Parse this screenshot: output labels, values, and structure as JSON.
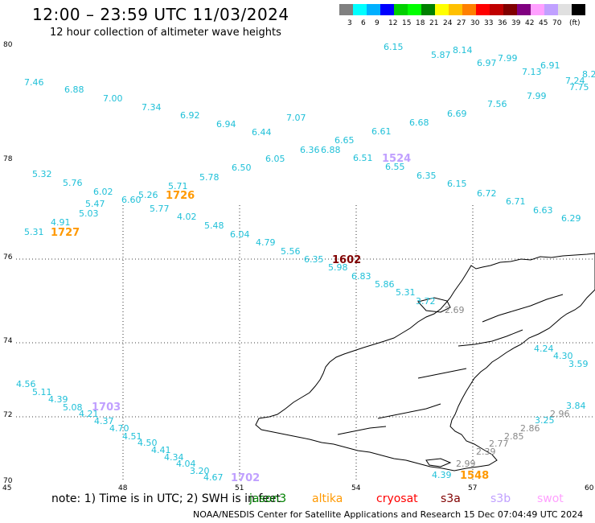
{
  "header": {
    "title": "12:00 – 23:59 UTC 11/03/2024",
    "subtitle": "12 hour collection of altimeter wave heights"
  },
  "legend": {
    "colors": [
      "#808080",
      "#00ffff",
      "#00b0ff",
      "#0000ff",
      "#00d000",
      "#00ff00",
      "#008000",
      "#ffff00",
      "#ffc000",
      "#ff8000",
      "#ff0000",
      "#c00000",
      "#800000",
      "#800080",
      "#ffa0ff",
      "#c0a0ff",
      "#e0e0e0",
      "#000000"
    ],
    "labels": [
      "3",
      "6",
      "9",
      "12",
      "15",
      "18",
      "21",
      "24",
      "27",
      "30",
      "33",
      "36",
      "39",
      "42",
      "45",
      "70"
    ],
    "unit": "(ft)"
  },
  "axes": {
    "lat_labels": [
      "80",
      "78",
      "76",
      "74",
      "72",
      "70"
    ],
    "lon_labels": [
      "45",
      "48",
      "51",
      "54",
      "57",
      "60"
    ]
  },
  "observations": [
    {
      "t": "6.15",
      "c": "#20c0d8"
    },
    {
      "t": "5.87",
      "c": "#20c0d8"
    },
    {
      "t": "8.14",
      "c": "#20c0d8"
    },
    {
      "t": "6.97",
      "c": "#20c0d8"
    },
    {
      "t": "7.99",
      "c": "#20c0d8"
    },
    {
      "t": "7.13",
      "c": "#20c0d8"
    },
    {
      "t": "6.91",
      "c": "#20c0d8"
    },
    {
      "t": "8.2",
      "c": "#20c0d8"
    },
    {
      "t": "7.24",
      "c": "#20c0d8"
    },
    {
      "t": "7.75",
      "c": "#20c0d8"
    },
    {
      "t": "7.46",
      "c": "#20c0d8"
    },
    {
      "t": "6.88",
      "c": "#20c0d8"
    },
    {
      "t": "7.00",
      "c": "#20c0d8"
    },
    {
      "t": "7.34",
      "c": "#20c0d8"
    },
    {
      "t": "6.92",
      "c": "#20c0d8"
    },
    {
      "t": "6.94",
      "c": "#20c0d8"
    },
    {
      "t": "6.44",
      "c": "#20c0d8"
    },
    {
      "t": "7.07",
      "c": "#20c0d8"
    },
    {
      "t": "6.36",
      "c": "#20c0d8"
    },
    {
      "t": "6.88",
      "c": "#20c0d8"
    },
    {
      "t": "6.65",
      "c": "#20c0d8"
    },
    {
      "t": "6.61",
      "c": "#20c0d8"
    },
    {
      "t": "6.68",
      "c": "#20c0d8"
    },
    {
      "t": "6.69",
      "c": "#20c0d8"
    },
    {
      "t": "7.56",
      "c": "#20c0d8"
    },
    {
      "t": "7.99",
      "c": "#20c0d8"
    },
    {
      "t": "6.05",
      "c": "#20c0d8"
    },
    {
      "t": "6.51",
      "c": "#20c0d8"
    },
    {
      "t": "6.55",
      "c": "#20c0d8"
    },
    {
      "t": "6.35",
      "c": "#20c0d8"
    },
    {
      "t": "6.15",
      "c": "#20c0d8"
    },
    {
      "t": "6.72",
      "c": "#20c0d8"
    },
    {
      "t": "6.71",
      "c": "#20c0d8"
    },
    {
      "t": "6.63",
      "c": "#20c0d8"
    },
    {
      "t": "6.29",
      "c": "#20c0d8"
    },
    {
      "t": "6.50",
      "c": "#20c0d8"
    },
    {
      "t": "5.78",
      "c": "#20c0d8"
    },
    {
      "t": "5.71",
      "c": "#20c0d8"
    },
    {
      "t": "5.32",
      "c": "#20c0d8"
    },
    {
      "t": "5.76",
      "c": "#20c0d8"
    },
    {
      "t": "6.02",
      "c": "#20c0d8"
    },
    {
      "t": "6.60",
      "c": "#20c0d8"
    },
    {
      "t": "5.26",
      "c": "#20c0d8"
    },
    {
      "t": "5.47",
      "c": "#20c0d8"
    },
    {
      "t": "5.77",
      "c": "#20c0d8"
    },
    {
      "t": "5.03",
      "c": "#20c0d8"
    },
    {
      "t": "4.91",
      "c": "#20c0d8"
    },
    {
      "t": "5.31",
      "c": "#20c0d8"
    },
    {
      "t": "4.02",
      "c": "#20c0d8"
    },
    {
      "t": "5.48",
      "c": "#20c0d8"
    },
    {
      "t": "6.04",
      "c": "#20c0d8"
    },
    {
      "t": "4.79",
      "c": "#20c0d8"
    },
    {
      "t": "5.56",
      "c": "#20c0d8"
    },
    {
      "t": "6.35",
      "c": "#20c0d8"
    },
    {
      "t": "5.98",
      "c": "#20c0d8"
    },
    {
      "t": "6.83",
      "c": "#20c0d8"
    },
    {
      "t": "5.86",
      "c": "#20c0d8"
    },
    {
      "t": "5.31",
      "c": "#20c0d8"
    },
    {
      "t": "3.72",
      "c": "#20c0d8"
    },
    {
      "t": "2.69",
      "c": "#888888"
    },
    {
      "t": "4.24",
      "c": "#20c0d8"
    },
    {
      "t": "4.30",
      "c": "#20c0d8"
    },
    {
      "t": "3.59",
      "c": "#20c0d8"
    },
    {
      "t": "3.84",
      "c": "#20c0d8"
    },
    {
      "t": "2.96",
      "c": "#888888"
    },
    {
      "t": "3.25",
      "c": "#20c0d8"
    },
    {
      "t": "2.86",
      "c": "#888888"
    },
    {
      "t": "2.85",
      "c": "#888888"
    },
    {
      "t": "2.77",
      "c": "#888888"
    },
    {
      "t": "2.39",
      "c": "#888888"
    },
    {
      "t": "2.99",
      "c": "#888888"
    },
    {
      "t": "4.39",
      "c": "#20c0d8"
    },
    {
      "t": "4.56",
      "c": "#20c0d8"
    },
    {
      "t": "5.11",
      "c": "#20c0d8"
    },
    {
      "t": "4.39",
      "c": "#20c0d8"
    },
    {
      "t": "5.08",
      "c": "#20c0d8"
    },
    {
      "t": "4.21",
      "c": "#20c0d8"
    },
    {
      "t": "4.37",
      "c": "#20c0d8"
    },
    {
      "t": "4.70",
      "c": "#20c0d8"
    },
    {
      "t": "4.51",
      "c": "#20c0d8"
    },
    {
      "t": "4.50",
      "c": "#20c0d8"
    },
    {
      "t": "4.41",
      "c": "#20c0d8"
    },
    {
      "t": "4.34",
      "c": "#20c0d8"
    },
    {
      "t": "4.04",
      "c": "#20c0d8"
    },
    {
      "t": "3.20",
      "c": "#20c0d8"
    },
    {
      "t": "4.67",
      "c": "#20c0d8"
    }
  ],
  "pass_times": [
    {
      "t": "1524",
      "c": "#c0a0ff"
    },
    {
      "t": "1726",
      "c": "#ff9900"
    },
    {
      "t": "1727",
      "c": "#ff9900"
    },
    {
      "t": "1602",
      "c": "#800000"
    },
    {
      "t": "1703",
      "c": "#c0a0ff"
    },
    {
      "t": "1702",
      "c": "#c0a0ff"
    },
    {
      "t": "1548",
      "c": "#ff9900"
    }
  ],
  "note": "note:  1) Time is in UTC; 2) SWH is in feet",
  "satellites": [
    {
      "name": "jason3",
      "color": "#008000"
    },
    {
      "name": "altika",
      "color": "#ff9900"
    },
    {
      "name": "cryosat",
      "color": "#ff0000"
    },
    {
      "name": "s3a",
      "color": "#800000"
    },
    {
      "name": "s3b",
      "color": "#c0a0ff"
    },
    {
      "name": "swot",
      "color": "#ffa0ff"
    }
  ],
  "footer": "NOAA/NESDIS Center for Satellite Applications and Research    15 Dec 07:04:49 UTC 2024"
}
